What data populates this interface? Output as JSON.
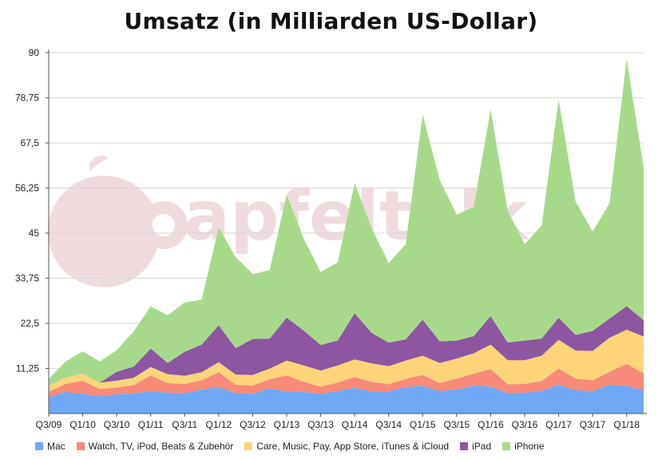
{
  "title": "Umsatz (in Milliarden US-Dollar)",
  "watermark": "apfeltalk",
  "colors": {
    "Mac": "#6fa8f5",
    "Watch": "#f88a78",
    "Services": "#fdd47a",
    "iPad": "#8c57a0",
    "iPhone": "#a8d98a"
  },
  "chart_data": {
    "type": "area",
    "stacked": true,
    "title": "Umsatz (in Milliarden US-Dollar)",
    "xlabel": "",
    "ylabel": "",
    "ylim": [
      0,
      90
    ],
    "yticks": [
      "11,25",
      "22,5",
      "33,75",
      "45",
      "56,25",
      "67,5",
      "78,75",
      "90"
    ],
    "ytick_values": [
      11.25,
      22.5,
      33.75,
      45,
      56.25,
      67.5,
      78.75,
      90
    ],
    "xtick_labels": [
      "Q3/09",
      "Q1/10",
      "Q3/10",
      "Q1/11",
      "Q3/11",
      "Q1/12",
      "Q3/12",
      "Q1/13",
      "Q3/13",
      "Q1/14",
      "Q3/14",
      "Q1/15",
      "Q3/15",
      "Q1/16",
      "Q3/16",
      "Q1/17",
      "Q3/17",
      "Q1/18"
    ],
    "grid": true,
    "legend_position": "bottom",
    "categories": [
      "Q3/09",
      "Q4/09",
      "Q1/10",
      "Q2/10",
      "Q3/10",
      "Q4/10",
      "Q1/11",
      "Q2/11",
      "Q3/11",
      "Q4/11",
      "Q1/12",
      "Q2/12",
      "Q3/12",
      "Q4/12",
      "Q1/13",
      "Q2/13",
      "Q3/13",
      "Q4/13",
      "Q1/14",
      "Q2/14",
      "Q3/14",
      "Q4/14",
      "Q1/15",
      "Q2/15",
      "Q3/15",
      "Q4/15",
      "Q1/16",
      "Q2/16",
      "Q3/16",
      "Q4/16",
      "Q1/17",
      "Q2/17",
      "Q3/17",
      "Q4/17",
      "Q1/18",
      "Q2/18"
    ],
    "series": [
      {
        "name": "Mac",
        "values": [
          4.1,
          5.4,
          4.9,
          4.3,
          4.8,
          5.0,
          5.6,
          5.2,
          5.1,
          6.0,
          6.6,
          5.1,
          4.9,
          6.3,
          5.5,
          5.4,
          4.9,
          5.6,
          6.4,
          5.5,
          5.5,
          6.6,
          6.9,
          5.6,
          6.0,
          6.9,
          6.7,
          5.1,
          5.2,
          5.7,
          7.2,
          5.8,
          5.6,
          7.2,
          6.9,
          5.8
        ]
      },
      {
        "name": " Watch,  TV, iPod, Beats & Zubehör",
        "values": [
          1.3,
          2.0,
          3.3,
          1.8,
          1.7,
          2.1,
          3.9,
          2.4,
          2.3,
          2.3,
          3.7,
          2.1,
          2.1,
          2.2,
          4.0,
          2.5,
          1.8,
          2.1,
          2.7,
          2.4,
          1.8,
          2.0,
          2.7,
          2.0,
          2.7,
          3.0,
          4.4,
          2.2,
          2.2,
          2.4,
          4.0,
          2.9,
          2.7,
          3.2,
          5.5,
          4.2
        ]
      },
      {
        "name": "Care,  Music,  Pay, App Store, iTunes & iCloud",
        "values": [
          1.5,
          1.6,
          1.7,
          1.6,
          1.7,
          1.8,
          2.1,
          2.2,
          2.0,
          2.0,
          2.5,
          2.5,
          2.6,
          2.7,
          3.7,
          4.1,
          4.0,
          4.3,
          4.4,
          4.6,
          4.5,
          4.6,
          4.8,
          5.0,
          5.0,
          5.1,
          6.1,
          6.0,
          5.9,
          6.3,
          7.2,
          7.0,
          7.3,
          8.5,
          8.5,
          9.2
        ]
      },
      {
        "name": "iPad",
        "values": [
          0,
          0,
          0,
          0,
          2.2,
          2.8,
          4.6,
          2.8,
          6.0,
          6.9,
          9.2,
          6.6,
          9.0,
          7.5,
          10.7,
          8.7,
          6.4,
          6.2,
          11.5,
          7.6,
          5.9,
          5.3,
          9.0,
          5.4,
          4.5,
          4.3,
          7.1,
          4.4,
          4.9,
          4.3,
          5.5,
          3.9,
          5.0,
          4.8,
          5.9,
          4.1
        ]
      },
      {
        "name": "iPhone",
        "values": [
          1.7,
          4.0,
          5.6,
          5.3,
          5.4,
          8.8,
          10.5,
          11.9,
          12.3,
          11.2,
          24.4,
          22.7,
          16.2,
          17.1,
          30.7,
          22.9,
          18.2,
          19.5,
          32.5,
          26.1,
          19.8,
          23.7,
          51.2,
          40.3,
          31.4,
          32.2,
          51.6,
          32.9,
          24.0,
          28.2,
          54.4,
          33.2,
          24.8,
          28.8,
          61.6,
          38.0
        ]
      }
    ]
  },
  "legend": [
    {
      "key": "Mac",
      "label": "Mac"
    },
    {
      "key": "Watch",
      "label": " Watch,  TV, iPod, Beats & Zubehör"
    },
    {
      "key": "Services",
      "label": "Care,  Music,  Pay, App Store, iTunes & iCloud"
    },
    {
      "key": "iPad",
      "label": "iPad"
    },
    {
      "key": "iPhone",
      "label": "iPhone"
    }
  ]
}
